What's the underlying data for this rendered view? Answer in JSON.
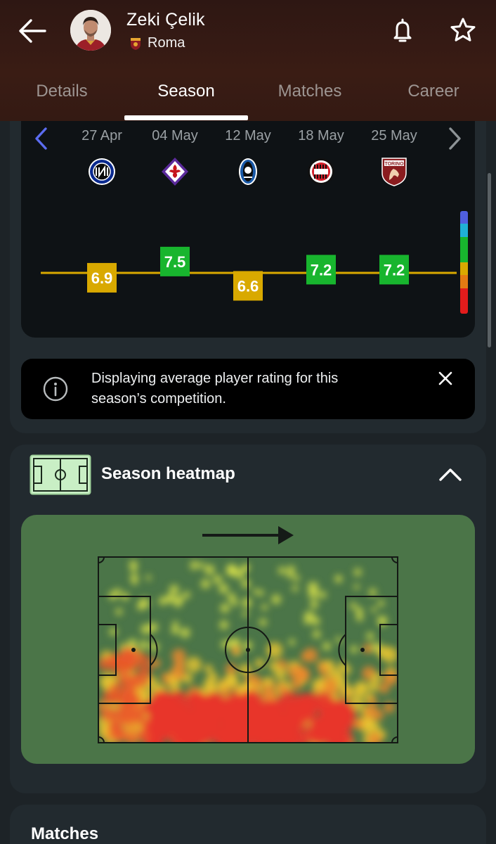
{
  "header": {
    "player_name": "Zeki Çelik",
    "team_name": "Roma",
    "icons": {
      "back": "arrow-left-icon",
      "notify": "bell-icon",
      "favorite": "star-icon"
    }
  },
  "tabs": [
    {
      "label": "Details",
      "active": false
    },
    {
      "label": "Season",
      "active": true
    },
    {
      "label": "Matches",
      "active": false
    },
    {
      "label": "Career",
      "active": false
    }
  ],
  "ratings": {
    "matches": [
      {
        "date": "27 Apr",
        "opponent_icon": "inter-crest-icon",
        "rating": "6.9",
        "color": "#d9a900"
      },
      {
        "date": "04 May",
        "opponent_icon": "fiorentina-crest-icon",
        "rating": "7.5",
        "color": "#18b52e"
      },
      {
        "date": "12 May",
        "opponent_icon": "atalanta-crest-icon",
        "rating": "6.6",
        "color": "#d9a900"
      },
      {
        "date": "18 May",
        "opponent_icon": "milan-crest-icon",
        "rating": "7.2",
        "color": "#18b52e"
      },
      {
        "date": "25 May",
        "opponent_icon": "torino-crest-icon",
        "rating": "7.2",
        "color": "#18b52e"
      }
    ],
    "average_line_color": "#d9a900",
    "scale_colors": [
      "#4f5fe0",
      "#1fb0d6",
      "#18b52e",
      "#18b52e",
      "#d9a900",
      "#e37a12",
      "#e21c1c",
      "#e21c1c"
    ]
  },
  "info": {
    "text": "Displaying average player rating for this season’s competition."
  },
  "heatmap": {
    "title": "Season heatmap",
    "pitch_color": "#4b7548",
    "attack_direction": "right"
  },
  "matches_section": {
    "title": "Matches"
  },
  "crest_labels": {
    "torino": "TORINO"
  }
}
